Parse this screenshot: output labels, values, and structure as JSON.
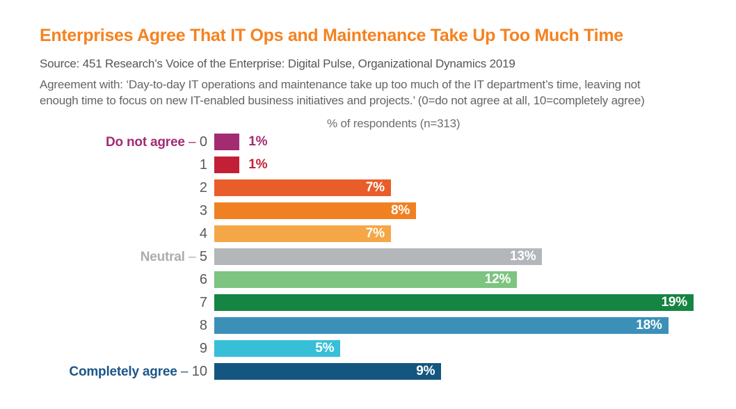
{
  "header": {
    "title": "Enterprises Agree That IT Ops and Maintenance Take Up Too Much Time",
    "source": "Source: 451 Research’s Voice of the Enterprise: Digital Pulse, Organizational Dynamics 2019",
    "description_line1": "Agreement with: ‘Day-to-day IT operations and maintenance take up too much of the IT department’s time, leaving not",
    "description_line2": "enough time to focus on new IT-enabled business initiatives and projects.’ (0=do not agree at all, 10=completely agree)"
  },
  "colors": {
    "title": "#F58220",
    "source_text": "#55565B",
    "description_text": "#636468",
    "category_number_text": "#58595C",
    "annotation_text": "#6D6E71",
    "inside_label_text": "#FFFFFF"
  },
  "chart_data": {
    "type": "bar",
    "orientation": "horizontal",
    "annotation": "% of respondents (n=313)",
    "categories": [
      "0",
      "1",
      "2",
      "3",
      "4",
      "5",
      "6",
      "7",
      "8",
      "9",
      "10"
    ],
    "values": [
      1,
      1,
      7,
      8,
      7,
      13,
      12,
      19,
      18,
      5,
      9
    ],
    "value_labels": [
      "1%",
      "1%",
      "7%",
      "8%",
      "7%",
      "13%",
      "12%",
      "19%",
      "18%",
      "5%",
      "9%"
    ],
    "bar_colors": [
      "#A32B72",
      "#C32037",
      "#E95D2A",
      "#F08122",
      "#F5A747",
      "#B3B7BA",
      "#7CC47F",
      "#168442",
      "#3B90B8",
      "#38BFD8",
      "#145680"
    ],
    "category_prefixes": [
      "Do not agree",
      "",
      "",
      "",
      "",
      "Neutral",
      "",
      "",
      "",
      "",
      "Completely agree"
    ],
    "prefix_colors": [
      "#A32B72",
      "",
      "",
      "",
      "",
      "#A9ADB0",
      "",
      "",
      "",
      "",
      "#1C5687"
    ],
    "dash": " – ",
    "xlim": [
      0,
      19
    ],
    "outside_label_threshold": 1,
    "grid": false,
    "legend": "none"
  }
}
